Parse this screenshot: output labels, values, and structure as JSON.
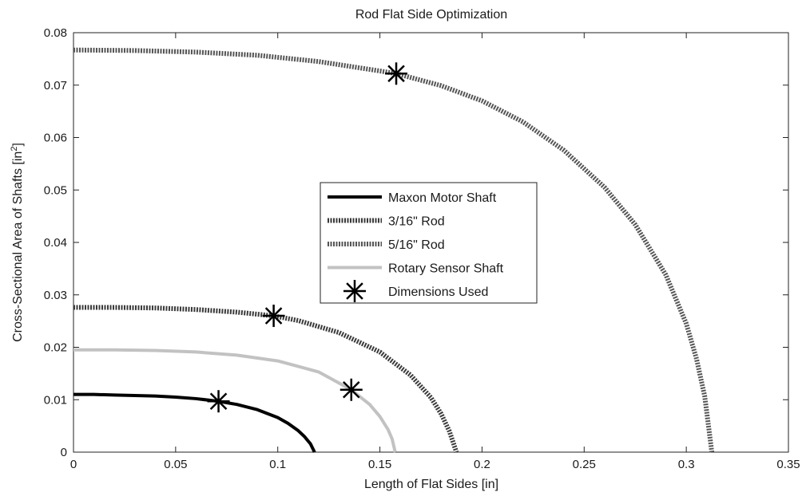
{
  "chart_data": {
    "type": "line",
    "title": "Rod Flat Side Optimization",
    "xlabel": "Length of Flat Sides [in]",
    "ylabel_main": "Cross-Sectional Area of Shafts [in",
    "ylabel_sup": "2",
    "ylabel_end": "]",
    "xlim": [
      0,
      0.35
    ],
    "ylim": [
      0,
      0.08
    ],
    "x_ticks": [
      0,
      0.05,
      0.1,
      0.15,
      0.2,
      0.25,
      0.3,
      0.35
    ],
    "x_tick_labels": [
      "0",
      "0.05",
      "0.1",
      "0.15",
      "0.2",
      "0.25",
      "0.3",
      "0.35"
    ],
    "y_ticks": [
      0,
      0.01,
      0.02,
      0.03,
      0.04,
      0.05,
      0.06,
      0.07,
      0.08
    ],
    "y_tick_labels": [
      "0",
      "0.01",
      "0.02",
      "0.03",
      "0.04",
      "0.05",
      "0.06",
      "0.07",
      "0.08"
    ],
    "grid": false,
    "legend_position": "center",
    "series": [
      {
        "name": "Maxon Motor Shaft",
        "color": "#000000",
        "style": "solid",
        "x": [
          0,
          0.01,
          0.02,
          0.03,
          0.04,
          0.05,
          0.06,
          0.071,
          0.08,
          0.09,
          0.1,
          0.105,
          0.11,
          0.113,
          0.116,
          0.118
        ],
        "y": [
          0.011,
          0.011,
          0.0109,
          0.0108,
          0.0107,
          0.0105,
          0.0102,
          0.0097,
          0.0091,
          0.0081,
          0.0066,
          0.0055,
          0.0041,
          0.003,
          0.0016,
          0
        ]
      },
      {
        "name": "3/16\" Rod",
        "color": "#3a3a3a",
        "style": "dotted",
        "x": [
          0,
          0.02,
          0.04,
          0.06,
          0.08,
          0.098,
          0.11,
          0.13,
          0.15,
          0.165,
          0.175,
          0.18,
          0.184,
          0.1875
        ],
        "y": [
          0.0276,
          0.0276,
          0.0275,
          0.0272,
          0.0267,
          0.026,
          0.0251,
          0.0228,
          0.0191,
          0.0147,
          0.0104,
          0.0073,
          0.004,
          0
        ]
      },
      {
        "name": "5/16\" Rod",
        "color": "#555555",
        "style": "dotted",
        "x": [
          0,
          0.03,
          0.06,
          0.09,
          0.12,
          0.15,
          0.158,
          0.18,
          0.2,
          0.22,
          0.24,
          0.26,
          0.275,
          0.29,
          0.3,
          0.305,
          0.309,
          0.3125
        ],
        "y": [
          0.0767,
          0.0766,
          0.0763,
          0.0757,
          0.0745,
          0.0727,
          0.0722,
          0.0699,
          0.067,
          0.063,
          0.0576,
          0.0505,
          0.0434,
          0.0338,
          0.0245,
          0.0178,
          0.0107,
          0
        ]
      },
      {
        "name": "Rotary Sensor Shaft",
        "color": "#c2c2c2",
        "style": "solid",
        "x": [
          0,
          0.02,
          0.04,
          0.06,
          0.08,
          0.1,
          0.12,
          0.136,
          0.145,
          0.15,
          0.154,
          0.156,
          0.1575
        ],
        "y": [
          0.0195,
          0.0195,
          0.0194,
          0.0191,
          0.0185,
          0.0174,
          0.0153,
          0.0119,
          0.0091,
          0.0068,
          0.0043,
          0.0025,
          0
        ]
      }
    ],
    "markers": {
      "name": "Dimensions Used",
      "symbol": "asterisk",
      "color": "#000000",
      "points": [
        {
          "x": 0.071,
          "y": 0.0097
        },
        {
          "x": 0.098,
          "y": 0.026
        },
        {
          "x": 0.136,
          "y": 0.0119
        },
        {
          "x": 0.158,
          "y": 0.0722
        }
      ]
    }
  }
}
